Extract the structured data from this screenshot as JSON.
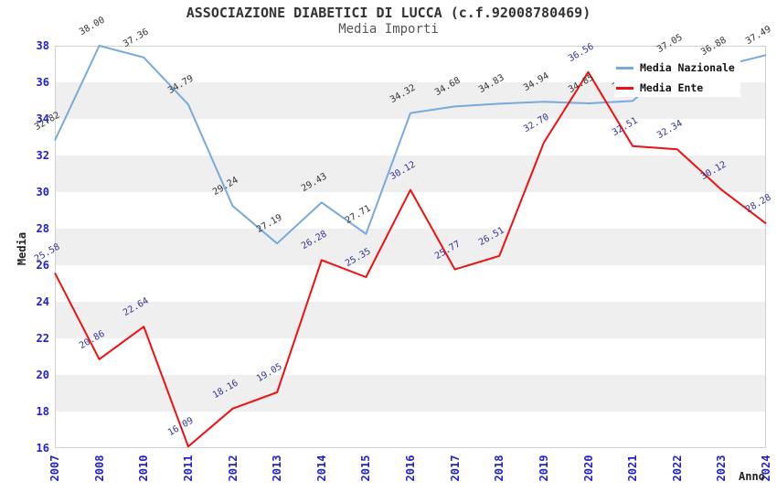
{
  "title": "ASSOCIAZIONE DIABETICI DI LUCCA (c.f.92008780469)",
  "subtitle": "Media Importi",
  "legend": [
    {
      "label": "Media Nazionale",
      "color": "#77aadd"
    },
    {
      "label": "Media Ente",
      "color": "#ee1111"
    }
  ],
  "axes": {
    "y_label": "Media",
    "x_label": "Anno",
    "y_tick_color": "#2222cc",
    "band_color": "#efefef"
  },
  "chart_data": {
    "type": "line",
    "title": "ASSOCIAZIONE DIABETICI DI LUCCA (c.f.92008780469)",
    "subtitle": "Media Importi",
    "xlabel": "Anno",
    "ylabel": "Media",
    "ylim": [
      16,
      38
    ],
    "y_tick_step": 2,
    "grid": "horizontal-bands",
    "legend_position": "top-right",
    "categories": [
      "2007",
      "2008",
      "2010",
      "2011",
      "2012",
      "2013",
      "2014",
      "2015",
      "2016",
      "2017",
      "2018",
      "2019",
      "2020",
      "2021",
      "2022",
      "2023",
      "2024"
    ],
    "series": [
      {
        "name": "Media Nazionale",
        "color": "#77aadd",
        "label_color": "#333333",
        "values": [
          32.82,
          38.0,
          37.36,
          34.79,
          29.24,
          27.19,
          29.43,
          27.71,
          34.32,
          34.68,
          34.83,
          34.94,
          34.85,
          34.98,
          37.05,
          36.88,
          37.49
        ]
      },
      {
        "name": "Media Ente",
        "color": "#ee1111",
        "label_color": "#333399",
        "values": [
          25.58,
          20.86,
          22.64,
          16.09,
          18.16,
          19.05,
          26.28,
          25.35,
          30.12,
          25.77,
          26.51,
          32.7,
          36.56,
          32.51,
          32.34,
          30.12,
          28.28
        ]
      }
    ]
  }
}
